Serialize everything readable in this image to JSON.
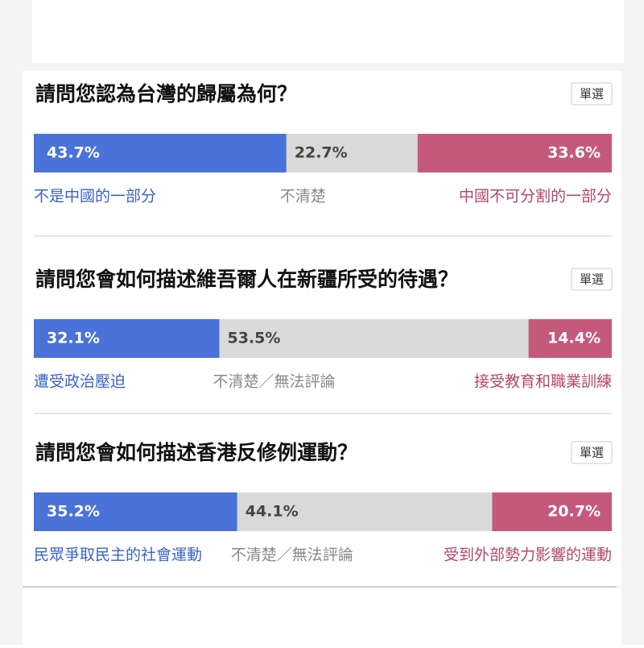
{
  "chart_data": [
    {
      "type": "stacked-bar",
      "title": "請問您認為台灣的歸屬為何？",
      "tag": "單選",
      "categories": [
        "不是中國的一部分",
        "不清楚",
        "中國不可分割的一部分"
      ],
      "values": [
        43.7,
        22.7,
        33.6
      ],
      "value_labels": [
        "43.7%",
        "22.7%",
        "33.6%"
      ],
      "colors": [
        "#4a72d8",
        "#d9d9d9",
        "#c5597c"
      ]
    },
    {
      "type": "stacked-bar",
      "title": "請問您會如何描述維吾爾人在新疆所受的待遇？",
      "tag": "單選",
      "categories": [
        "遭受政治壓迫",
        "不清楚／無法評論",
        "接受教育和職業訓練"
      ],
      "values": [
        32.1,
        53.5,
        14.4
      ],
      "value_labels": [
        "32.1%",
        "53.5%",
        "14.4%"
      ],
      "colors": [
        "#4a72d8",
        "#d9d9d9",
        "#c5597c"
      ]
    },
    {
      "type": "stacked-bar",
      "title": "請問您會如何描述香港反修例運動？",
      "tag": "單選",
      "categories": [
        "民眾爭取民主的社會運動",
        "不清楚／無法評論",
        "受到外部勢力影響的運動"
      ],
      "values": [
        35.2,
        44.1,
        20.7
      ],
      "value_labels": [
        "35.2%",
        "44.1%",
        "20.7%"
      ],
      "colors": [
        "#4a72d8",
        "#d9d9d9",
        "#c5597c"
      ]
    }
  ]
}
